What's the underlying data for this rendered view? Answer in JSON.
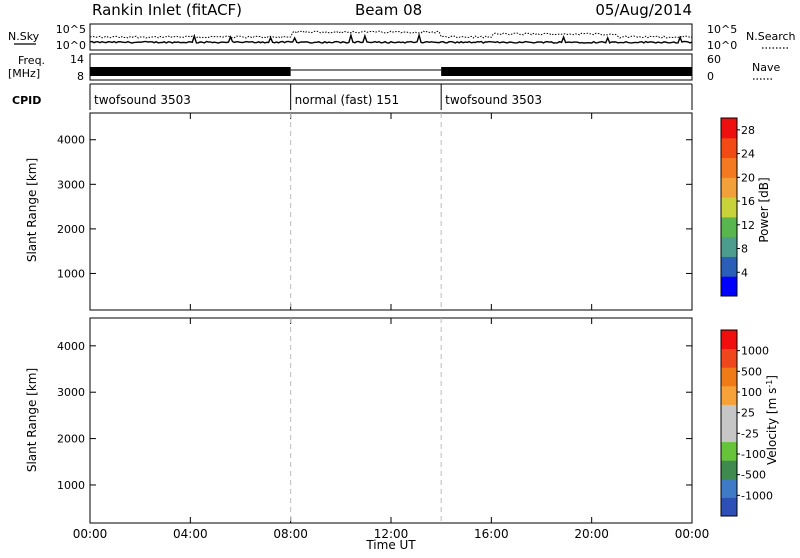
{
  "header": {
    "station": "Rankin Inlet (fitACF)",
    "beam": "Beam 08",
    "date": "05/Aug/2014"
  },
  "strip": {
    "nsky_label": "N.Sky",
    "nsearch_label": "N.Search",
    "nsky_ticks": [
      "10^5",
      "10^0"
    ],
    "nsearch_ticks": [
      "10^5",
      "10^0"
    ],
    "freq_label": "Freq.",
    "freq_unit": "[MHz]",
    "freq_ticks": [
      "14",
      "8"
    ],
    "nave_label": "Nave",
    "nave_ticks": [
      "60",
      "0"
    ],
    "cpid_label": "CPID",
    "programs": [
      {
        "name": "twofsound 3503",
        "start_h": 0,
        "end_h": 8
      },
      {
        "name": "normal (fast) 151",
        "start_h": 8,
        "end_h": 14
      },
      {
        "name": "twofsound 3503",
        "start_h": 14,
        "end_h": 24
      }
    ]
  },
  "xaxis": {
    "title": "Time UT",
    "ticks": [
      "00:00",
      "04:00",
      "08:00",
      "12:00",
      "16:00",
      "20:00",
      "00:00"
    ]
  },
  "colors": {
    "power": [
      "#0000ff",
      "#2b5fb7",
      "#4d9d8f",
      "#59b64e",
      "#c8d23b",
      "#f2a03a",
      "#f47a22",
      "#f24a14",
      "#ee1010"
    ],
    "velocity": [
      "#2e4fb5",
      "#3f7ac6",
      "#3e8a4f",
      "#66c33a",
      "#c6c6c6",
      "#c6c6c6",
      "#f7a238",
      "#f07a18",
      "#f0461e",
      "#f00e0e"
    ]
  },
  "chart_data": [
    {
      "type": "heatmap",
      "title": "Power",
      "ylabel": "Slant Range [km]",
      "xlabel": "Time UT",
      "xlim": [
        0,
        24
      ],
      "ylim": [
        180,
        4600
      ],
      "yticks": [
        "1000",
        "2000",
        "3000",
        "4000"
      ],
      "colorbar": {
        "label": "Power [dB]",
        "ticks": [
          "4",
          "8",
          "12",
          "16",
          "20",
          "24",
          "28"
        ],
        "range": [
          0,
          30
        ]
      },
      "grid": false
    },
    {
      "type": "heatmap",
      "title": "Velocity",
      "ylabel": "Slant Range [km]",
      "xlabel": "Time UT",
      "xlim": [
        0,
        24
      ],
      "ylim": [
        180,
        4600
      ],
      "yticks": [
        "1000",
        "2000",
        "3000",
        "4000"
      ],
      "colorbar": {
        "label": "Velocity [m s^-1]",
        "ticks": [
          "1000",
          "500",
          "100",
          "25",
          "-25",
          "-100",
          "-500",
          "-1000"
        ],
        "range": [
          -1200,
          1200
        ]
      },
      "grid": false
    }
  ]
}
